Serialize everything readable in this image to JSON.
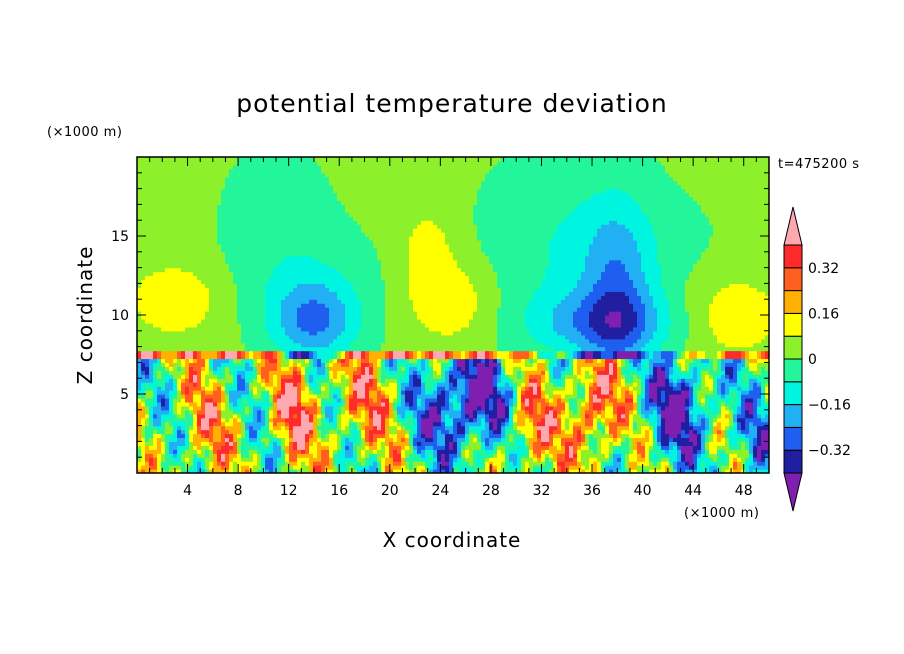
{
  "chart_data": {
    "type": "heatmap",
    "title": "potential temperature deviation",
    "xlabel": "X coordinate",
    "ylabel": "Z coordinate",
    "x_units": "(×1000 m)",
    "y_units": "(×1000 m)",
    "time_label": "t=475200 s",
    "xlim": [
      0,
      50
    ],
    "ylim": [
      0,
      20
    ],
    "x_ticks": [
      4,
      8,
      12,
      16,
      20,
      24,
      28,
      32,
      36,
      40,
      44,
      48
    ],
    "y_ticks": [
      5,
      10,
      15
    ],
    "colorbar": {
      "levels": [
        -0.4,
        -0.32,
        -0.24,
        -0.16,
        -0.08,
        0,
        0.08,
        0.16,
        0.24,
        0.32,
        0.4
      ],
      "colors": [
        "#7f1fb0",
        "#1f1f9f",
        "#1f5fef",
        "#22b0f5",
        "#00f5e0",
        "#22f59a",
        "#8cf02a",
        "#ffff00",
        "#ffb000",
        "#ff6020",
        "#ff2a2a",
        "#ffa8b0"
      ],
      "tick_values": [
        -0.32,
        -0.16,
        0,
        0.16,
        0.32
      ],
      "tick_labels": [
        "−0.32",
        "−0.16",
        "0",
        "0.16",
        "0.32"
      ]
    },
    "grid": false,
    "legend": "right"
  }
}
